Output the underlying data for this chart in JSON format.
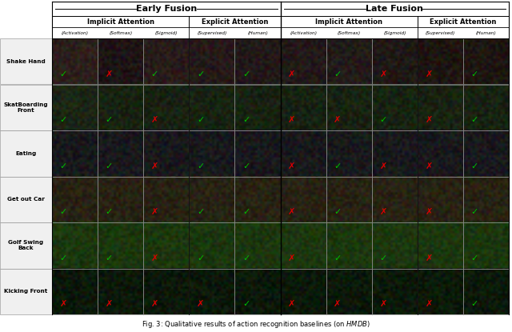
{
  "col_group1_label": "Early Fusion",
  "col_group2_label": "Late Fusion",
  "col_sub_labels": [
    "Implicit Attention",
    "Explicit Attention",
    "Implicit Attention",
    "Explicit Attention"
  ],
  "col_leaf_labels": [
    "(Activation)",
    "(Softmax)",
    "(Sigmoid)",
    "(Supervised)",
    "(Human)",
    "(Activation)",
    "(Softmax)",
    "(Sigmoid)",
    "(Supervised)",
    "(Human)"
  ],
  "row_labels": [
    "Shake Hand",
    "SkatBoarding\nFront",
    "Eating",
    "Get out Car",
    "Golf Swing\nBack",
    "Kicking Front"
  ],
  "n_rows": 6,
  "n_cols": 10,
  "checkmarks": [
    [
      1,
      0,
      1,
      1,
      1,
      0,
      1,
      0,
      0,
      1
    ],
    [
      1,
      1,
      0,
      1,
      1,
      0,
      0,
      1,
      0,
      1
    ],
    [
      1,
      1,
      0,
      1,
      1,
      0,
      1,
      0,
      0,
      1
    ],
    [
      1,
      1,
      0,
      1,
      1,
      0,
      1,
      0,
      0,
      1
    ],
    [
      1,
      1,
      0,
      1,
      1,
      0,
      1,
      1,
      0,
      1
    ],
    [
      0,
      0,
      0,
      0,
      1,
      0,
      0,
      0,
      0,
      1
    ]
  ],
  "caption": "Fig. 3: Qualitative results of action recognition baselines (on ",
  "caption_bold_italic": "HMDB",
  "caption_end": ")",
  "check_color": "#00bb00",
  "cross_color": "#dd0000",
  "figsize": [
    6.4,
    4.15
  ],
  "dpi": 100,
  "row_bg_colors": [
    [
      "#2a1e1a",
      "#1a1215",
      "#251a18",
      "#211918",
      "#201918",
      "#201918",
      "#201a18",
      "#1e1815",
      "#1c1612",
      "#1c1612"
    ],
    [
      "#1a2215",
      "#182012",
      "#182012",
      "#182012",
      "#182012",
      "#182012",
      "#182012",
      "#182012",
      "#182012",
      "#182012"
    ],
    [
      "#181818",
      "#181818",
      "#181818",
      "#181818",
      "#181818",
      "#181818",
      "#181818",
      "#181818",
      "#181818",
      "#181818"
    ],
    [
      "#282015",
      "#282015",
      "#282015",
      "#282015",
      "#282015",
      "#282015",
      "#282015",
      "#282015",
      "#282015",
      "#282015"
    ],
    [
      "#1a2810",
      "#1a2810",
      "#1a2810",
      "#1a2810",
      "#1a2810",
      "#1a2810",
      "#1a2810",
      "#1a2810",
      "#1a2810",
      "#1a2810"
    ],
    [
      "#0a1508",
      "#0a1508",
      "#0a1508",
      "#0a1508",
      "#0a1508",
      "#0a1508",
      "#0a1508",
      "#0a1508",
      "#0a1508",
      "#0a1508"
    ]
  ]
}
